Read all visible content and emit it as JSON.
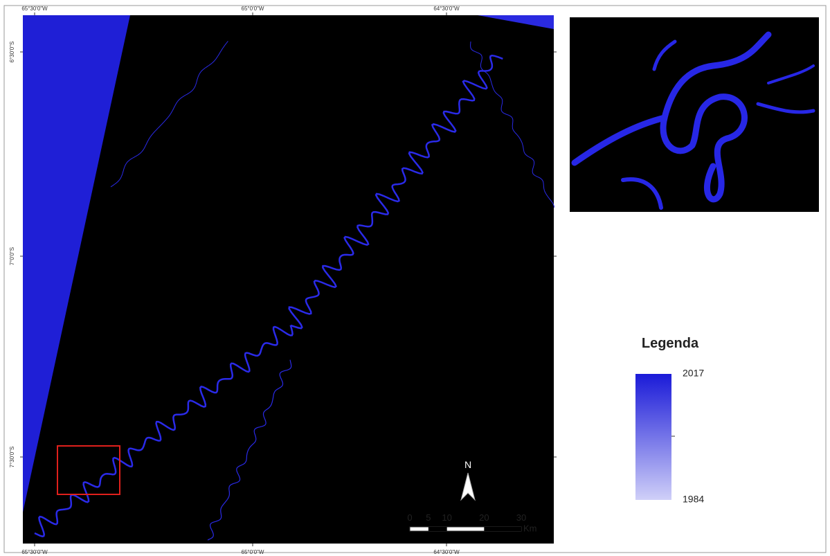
{
  "map": {
    "top_labels": [
      "65°30'0\"W",
      "65°0'0\"W",
      "64°30'0\"W"
    ],
    "bottom_labels": [
      "65°30'0\"W",
      "65°0'0\"W",
      "64°30'0\"W"
    ],
    "left_labels": [
      "6°30'0\"S",
      "7°0'0\"S",
      "7°30'0\"S"
    ]
  },
  "legend": {
    "title": "Legenda",
    "max": "2017",
    "min": "1984"
  },
  "scale_bar": {
    "ticks": [
      0,
      5,
      10,
      20,
      30
    ],
    "unit": "Km"
  },
  "north": "N"
}
